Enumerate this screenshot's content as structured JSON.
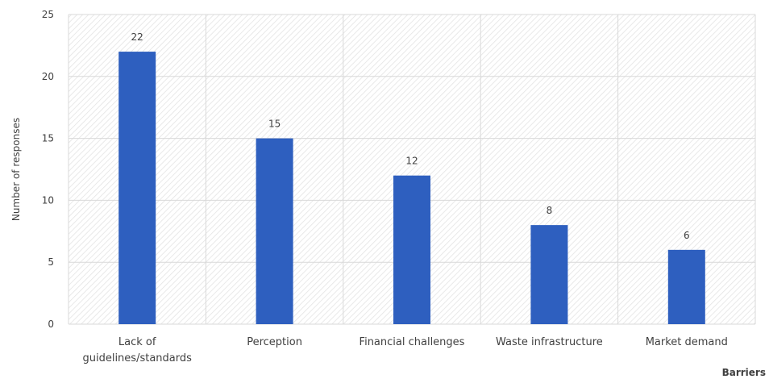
{
  "chart_data": {
    "type": "bar",
    "categories": [
      [
        "Lack of",
        "guidelines/standards"
      ],
      [
        "Perception"
      ],
      [
        "Financial challenges"
      ],
      [
        "Waste infrastructure"
      ],
      [
        "Market demand"
      ]
    ],
    "values": [
      22,
      15,
      12,
      8,
      6
    ],
    "data_labels": [
      "22",
      "15",
      "12",
      "8",
      "6"
    ],
    "ylim": [
      0,
      25
    ],
    "yticks": [
      0,
      5,
      10,
      15,
      20,
      25
    ],
    "ylabel": "Number of responses",
    "xlabel": "Barriers",
    "grid": true,
    "bar_color": "#2e5fbf",
    "grid_color": "#d9d9d9",
    "text_color": "#404040"
  }
}
